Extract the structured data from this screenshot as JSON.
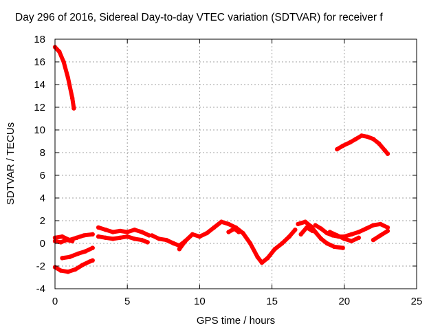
{
  "chart_data": {
    "type": "scatter",
    "title": "Day 296 of 2016, Sidereal Day-to-day VTEC variation (SDTVAR) for receiver f",
    "xlabel": "GPS time / hours",
    "ylabel": "SDTVAR / TECUs",
    "xlim": [
      0,
      25
    ],
    "ylim": [
      -4,
      18
    ],
    "xticks": [
      0,
      5,
      10,
      15,
      20,
      25
    ],
    "yticks": [
      -4,
      -2,
      0,
      2,
      4,
      6,
      8,
      10,
      12,
      14,
      16,
      18
    ],
    "grid": true,
    "legend": "none",
    "color": "#ff0000",
    "series": [
      {
        "points": [
          [
            0,
            17.3
          ],
          [
            0.3,
            16.9
          ],
          [
            0.6,
            16.0
          ],
          [
            0.9,
            14.6
          ],
          [
            1.2,
            12.8
          ],
          [
            1.3,
            11.9
          ]
        ]
      },
      {
        "points": [
          [
            19.5,
            8.3
          ],
          [
            19.9,
            8.6
          ],
          [
            20.4,
            8.9
          ],
          [
            20.8,
            9.2
          ],
          [
            21.2,
            9.5
          ],
          [
            21.6,
            9.4
          ],
          [
            22.0,
            9.2
          ],
          [
            22.4,
            8.8
          ],
          [
            22.8,
            8.2
          ],
          [
            23.0,
            7.9
          ]
        ]
      },
      {
        "points": [
          [
            0,
            0.5
          ],
          [
            0.5,
            0.6
          ],
          [
            1.0,
            0.3
          ],
          [
            1.5,
            0.5
          ],
          [
            2.0,
            0.7
          ],
          [
            2.6,
            0.8
          ]
        ]
      },
      {
        "points": [
          [
            0,
            0.2
          ],
          [
            0.4,
            0.1
          ],
          [
            0.8,
            0.3
          ],
          [
            1.2,
            0.2
          ]
        ]
      },
      {
        "points": [
          [
            0.5,
            -1.3
          ],
          [
            1.0,
            -1.2
          ],
          [
            1.6,
            -0.9
          ],
          [
            2.1,
            -0.7
          ],
          [
            2.6,
            -0.4
          ]
        ]
      },
      {
        "points": [
          [
            0,
            -2.1
          ],
          [
            0.4,
            -2.4
          ],
          [
            0.9,
            -2.5
          ],
          [
            1.4,
            -2.3
          ],
          [
            1.9,
            -1.9
          ],
          [
            2.4,
            -1.6
          ],
          [
            2.6,
            -1.5
          ]
        ]
      },
      {
        "points": [
          [
            3.0,
            1.4
          ],
          [
            3.5,
            1.2
          ],
          [
            4.0,
            1.0
          ],
          [
            4.5,
            1.1
          ],
          [
            5.0,
            1.0
          ],
          [
            5.5,
            1.2
          ],
          [
            6.0,
            1.0
          ],
          [
            6.5,
            0.7
          ]
        ]
      },
      {
        "points": [
          [
            3.0,
            0.6
          ],
          [
            3.5,
            0.5
          ],
          [
            4.0,
            0.4
          ],
          [
            4.5,
            0.5
          ],
          [
            5.0,
            0.6
          ],
          [
            5.5,
            0.4
          ],
          [
            6.0,
            0.3
          ],
          [
            6.4,
            0.1
          ]
        ]
      },
      {
        "points": [
          [
            6.7,
            0.7
          ],
          [
            7.2,
            0.4
          ],
          [
            7.7,
            0.3
          ],
          [
            8.2,
            0.0
          ],
          [
            8.6,
            -0.2
          ],
          [
            9.0,
            0.2
          ]
        ]
      },
      {
        "points": [
          [
            8.6,
            -0.5
          ],
          [
            9.0,
            0.2
          ],
          [
            9.5,
            0.8
          ],
          [
            10.0,
            0.6
          ],
          [
            10.5,
            0.9
          ],
          [
            11.0,
            1.4
          ],
          [
            11.5,
            1.9
          ],
          [
            12.0,
            1.7
          ],
          [
            12.5,
            1.4
          ],
          [
            13.0,
            0.9
          ],
          [
            13.5,
            0.0
          ],
          [
            14.0,
            -1.2
          ],
          [
            14.3,
            -1.7
          ],
          [
            14.7,
            -1.3
          ],
          [
            15.2,
            -0.5
          ],
          [
            15.7,
            0.0
          ],
          [
            16.2,
            0.6
          ],
          [
            16.6,
            1.2
          ]
        ]
      },
      {
        "points": [
          [
            12.0,
            1.0
          ],
          [
            12.4,
            1.3
          ],
          [
            12.7,
            1.0
          ]
        ]
      },
      {
        "points": [
          [
            16.8,
            1.7
          ],
          [
            17.3,
            1.9
          ],
          [
            17.7,
            1.5
          ],
          [
            18.0,
            1.0
          ],
          [
            18.4,
            0.4
          ],
          [
            18.8,
            0.0
          ],
          [
            19.3,
            -0.3
          ],
          [
            19.9,
            -0.4
          ]
        ]
      },
      {
        "points": [
          [
            17.0,
            0.8
          ],
          [
            17.4,
            1.4
          ],
          [
            17.8,
            1.1
          ]
        ]
      },
      {
        "points": [
          [
            18.0,
            1.6
          ],
          [
            18.4,
            1.3
          ],
          [
            18.8,
            0.9
          ],
          [
            19.2,
            0.7
          ],
          [
            19.6,
            0.6
          ],
          [
            20.0,
            0.6
          ],
          [
            20.5,
            0.8
          ],
          [
            21.0,
            1.0
          ],
          [
            21.5,
            1.3
          ],
          [
            22.0,
            1.6
          ],
          [
            22.5,
            1.7
          ],
          [
            23.0,
            1.4
          ]
        ]
      },
      {
        "points": [
          [
            19.0,
            1.0
          ],
          [
            19.5,
            0.7
          ],
          [
            20.0,
            0.4
          ],
          [
            20.5,
            0.2
          ],
          [
            21.0,
            0.5
          ]
        ]
      },
      {
        "points": [
          [
            22.0,
            0.3
          ],
          [
            22.5,
            0.7
          ],
          [
            23.0,
            1.1
          ]
        ]
      }
    ]
  }
}
